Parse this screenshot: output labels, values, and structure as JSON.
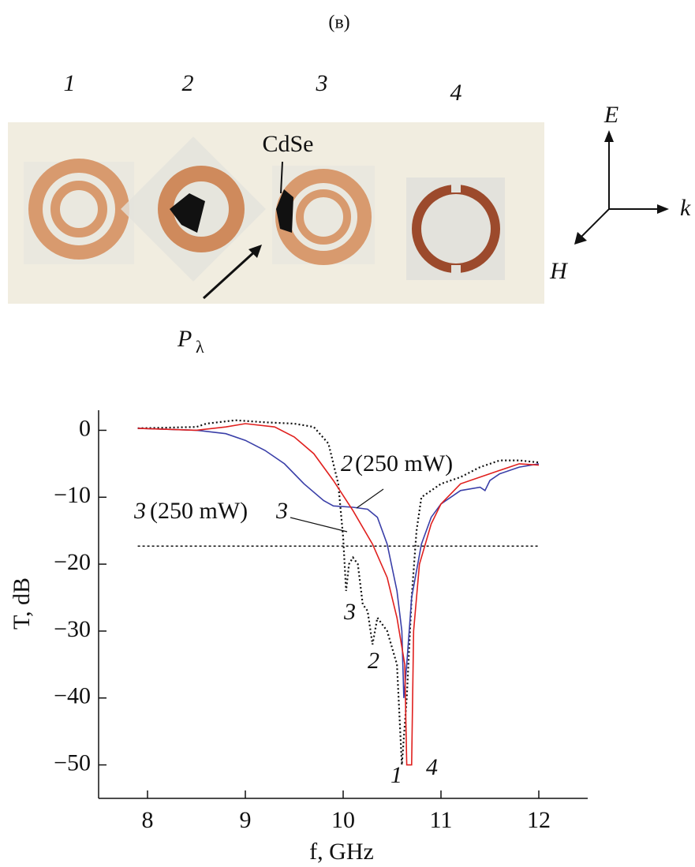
{
  "figure_label": "(в)",
  "photo": {
    "labels": [
      "1",
      "2",
      "3",
      "4"
    ],
    "material": "CdSe",
    "pump": "P",
    "pump_sub": "λ",
    "axes": {
      "e": "E",
      "k": "k",
      "h": "H"
    }
  },
  "chart_data": {
    "type": "line",
    "x_label": "f, GHz",
    "y_label": "T, dB",
    "xlim": [
      7.5,
      12.5
    ],
    "ylim": [
      -55,
      3
    ],
    "xticks": [
      8,
      9,
      10,
      11,
      12
    ],
    "yticks": [
      0,
      {
        "value": -10,
        "label": "−10"
      },
      {
        "value": -20,
        "label": "−20"
      },
      {
        "value": -30,
        "label": "−30"
      },
      {
        "value": -40,
        "label": "−40"
      },
      {
        "value": -50,
        "label": "−50"
      }
    ],
    "reference_line": -17.3,
    "series": [
      {
        "color": "#111111",
        "dash": "dotted",
        "x": [
          7.9,
          8.5,
          8.6,
          8.9,
          9.2,
          9.5,
          9.7,
          9.85,
          9.95,
          10.0,
          10.03,
          10.06,
          10.1,
          10.15,
          10.2,
          10.25,
          10.3,
          10.35,
          10.45,
          10.55,
          10.6,
          10.65,
          10.7,
          10.75,
          10.8,
          10.9,
          11.0,
          11.2,
          11.4,
          11.5,
          11.6,
          11.8,
          12.0
        ],
        "values": [
          0.3,
          0.5,
          1,
          1.5,
          1.2,
          1,
          0.5,
          -2,
          -8,
          -16,
          -24,
          -20,
          -19,
          -20,
          -26,
          -27,
          -32,
          -28,
          -30,
          -35,
          -50,
          -40,
          -25,
          -15,
          -10,
          -9,
          -8,
          -7,
          -5.5,
          -5,
          -4.5,
          -4.5,
          -4.8
        ]
      },
      {
        "color": "#3a3fa8",
        "dash": "solid",
        "x": [
          7.9,
          8.5,
          8.8,
          9.0,
          9.2,
          9.4,
          9.6,
          9.8,
          9.9,
          10.1,
          10.25,
          10.35,
          10.45,
          10.55,
          10.6,
          10.62,
          10.65,
          10.7,
          10.8,
          10.9,
          11.0,
          11.2,
          11.4,
          11.45,
          11.5,
          11.6,
          11.8,
          12.0
        ],
        "values": [
          0.3,
          0,
          -0.5,
          -1.5,
          -3,
          -5,
          -8,
          -10.5,
          -11.3,
          -11.5,
          -11.8,
          -13,
          -17,
          -24,
          -30,
          -40,
          -35,
          -25,
          -17,
          -13,
          -11,
          -9,
          -8.5,
          -9,
          -7.5,
          -6.5,
          -5.5,
          -5
        ]
      },
      {
        "color": "#e0201e",
        "dash": "solid",
        "x": [
          7.9,
          8.5,
          8.8,
          9.0,
          9.3,
          9.5,
          9.7,
          9.9,
          10.1,
          10.3,
          10.45,
          10.55,
          10.63,
          10.65,
          10.7,
          10.72,
          10.78,
          10.9,
          11.0,
          11.2,
          11.4,
          11.6,
          11.8,
          12.0
        ],
        "values": [
          0.3,
          0,
          0.5,
          1,
          0.5,
          -1,
          -3.5,
          -7.5,
          -12,
          -17,
          -22,
          -28,
          -35,
          -50,
          -50,
          -30,
          -20,
          -14,
          -11,
          -8,
          -7,
          -6,
          -5,
          -5.2
        ]
      }
    ],
    "annotations": [
      "2",
      "(250 mW)",
      "3",
      "(250 mW)",
      "3",
      "3",
      "2",
      "1",
      "4"
    ]
  }
}
